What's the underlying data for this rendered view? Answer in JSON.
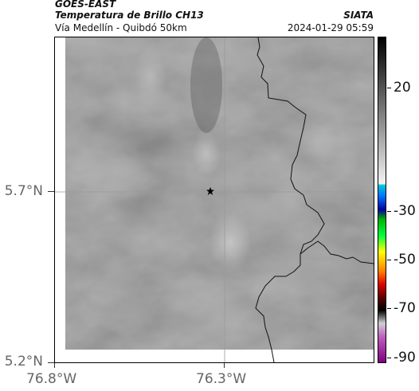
{
  "header": {
    "satellite": "GOES-EAST",
    "product": "Temperatura de Brillo CH13",
    "route": "Vía Medellín - Quibdó 50km",
    "org": "SIATA",
    "timestamp": "2024-01-29 05:59"
  },
  "axes": {
    "lat_labels": [
      "5.7°N",
      "5.2°N"
    ],
    "lon_labels": [
      "76.8°W",
      "76.3°W"
    ]
  },
  "colorbar": {
    "labels": [
      "20",
      "-30",
      "-50",
      "-70",
      "-90"
    ]
  },
  "map": {
    "marker_icon": "star-icon",
    "grid_color": "#9a9a9a",
    "border_color": "#000000"
  }
}
